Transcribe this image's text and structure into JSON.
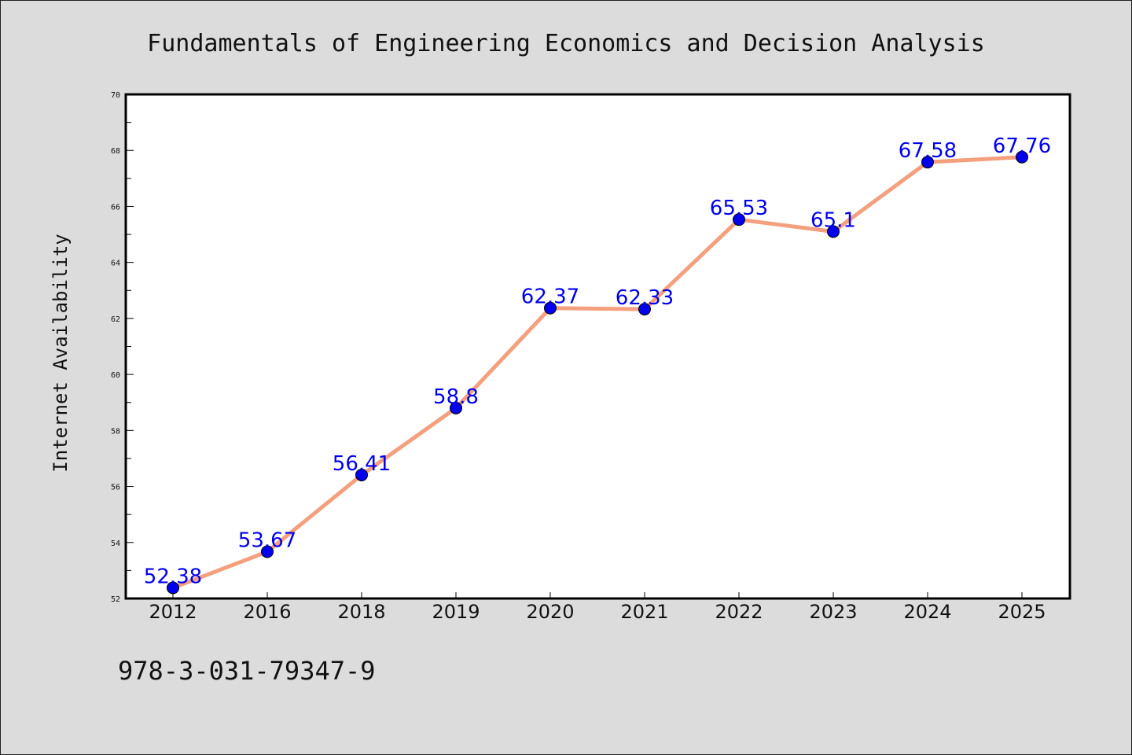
{
  "footer": {
    "isbn": "978-3-031-79347-9"
  },
  "colors": {
    "line": "#f4a07e",
    "marker": "#0000ee",
    "label": "#0000ee",
    "background": "#dcdcdc",
    "plot": "#ffffff"
  },
  "chart_data": {
    "type": "line",
    "title": "Fundamentals of Engineering Economics and Decision Analysis",
    "xlabel": "",
    "ylabel": "Internet Availability",
    "categories": [
      "2012",
      "2016",
      "2018",
      "2019",
      "2020",
      "2021",
      "2022",
      "2023",
      "2024",
      "2025"
    ],
    "series": [
      {
        "values": [
          52.38,
          53.67,
          56.41,
          58.8,
          62.37,
          62.33,
          65.53,
          65.1,
          67.58,
          67.76
        ],
        "labels": [
          "52.38",
          "53.67",
          "56.41",
          "58.8",
          "62.37",
          "62.33",
          "65.53",
          "65.1",
          "67.58",
          "67.76"
        ]
      }
    ],
    "ylim": [
      52,
      70
    ],
    "yticks": [
      "52",
      "54",
      "56",
      "58",
      "60",
      "62",
      "64",
      "66",
      "68",
      "70"
    ],
    "grid": false,
    "legend": "none"
  }
}
